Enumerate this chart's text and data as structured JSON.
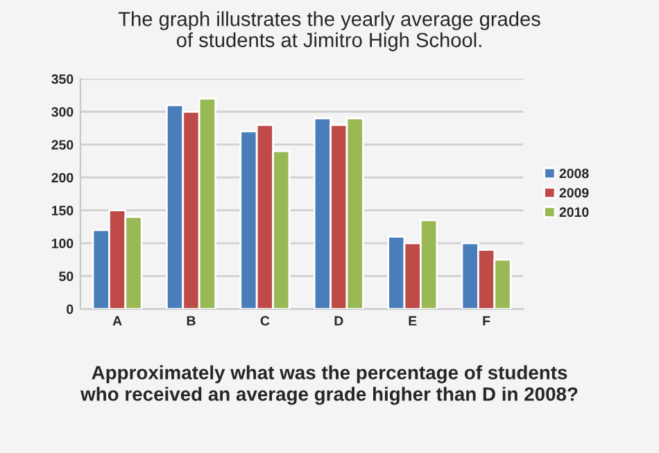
{
  "chart_data": {
    "type": "bar",
    "title": "The graph illustrates the yearly average grades\nof students at Jimitro High School.",
    "categories": [
      "A",
      "B",
      "C",
      "D",
      "E",
      "F"
    ],
    "series": [
      {
        "name": "2008",
        "color": "#4a7ebb",
        "values": [
          120,
          310,
          270,
          290,
          110,
          100
        ]
      },
      {
        "name": "2009",
        "color": "#be4b48",
        "values": [
          150,
          300,
          280,
          280,
          100,
          90
        ]
      },
      {
        "name": "2010",
        "color": "#98b954",
        "values": [
          140,
          320,
          240,
          290,
          135,
          75
        ]
      }
    ],
    "ylim": [
      0,
      350
    ],
    "yticks": [
      0,
      50,
      100,
      150,
      200,
      250,
      300,
      350
    ],
    "grid": "y",
    "legend": "right",
    "annotations": [
      "Approximately what was the percentage of students\nwho received an average grade higher than D in 2008?"
    ]
  }
}
